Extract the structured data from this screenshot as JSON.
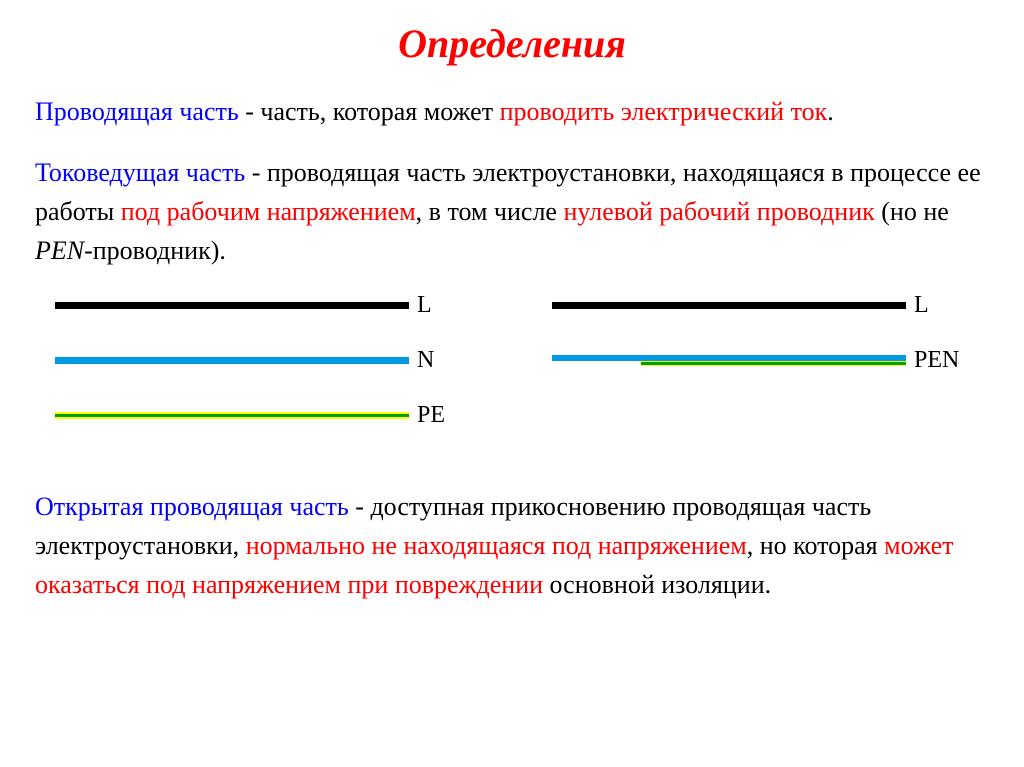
{
  "title": "Определения",
  "def1": {
    "term": "Проводящая часть",
    "sep": " - ",
    "t1": "часть, которая может ",
    "h1": "проводить электрический ток",
    "t2": "."
  },
  "def2": {
    "term": "Токоведущая часть",
    "sep": " - ",
    "t1": "проводящая часть электроустановки, находящаяся в процессе ее работы ",
    "h1": "под рабочим напряжением",
    "t2": ", в том числе ",
    "h2": "нулевой рабочий проводник",
    "t3": " (но не ",
    "pen": "PEN",
    "t4": "-проводник)."
  },
  "def3": {
    "term": "Открытая проводящая часть",
    "sep": " - ",
    "t1": "доступная прикосновению проводящая часть электроустановки, ",
    "h1": "нормально не находящаяся под напряжением",
    "t2": ", но которая ",
    "h2": "может оказаться под напряжением при повреждении",
    "t3": " основной изоляции."
  },
  "diagram": {
    "left": {
      "labels": [
        "L",
        "N",
        "PE"
      ]
    },
    "right": {
      "labels": [
        "L",
        "PEN"
      ]
    },
    "colors": {
      "black": "#000000",
      "blue": "#0099e5",
      "yellow": "#ffff00",
      "green": "#00a000"
    }
  }
}
